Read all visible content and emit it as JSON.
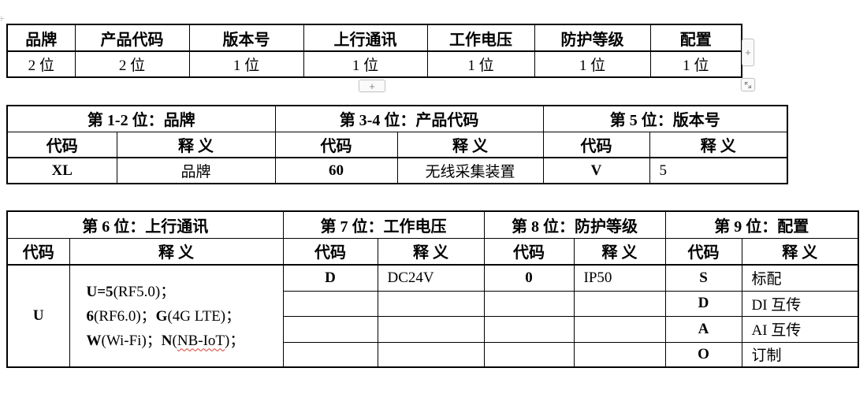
{
  "colors": {
    "border": "#000000",
    "squiggle": "#e03a2f",
    "widget_border": "#c6c6c6"
  },
  "labels": {
    "code_header": "代码",
    "meaning_header": "释 义"
  },
  "widgets": {
    "add_column": "+",
    "add_row": "+",
    "move_handle": "+",
    "resize_icon": "diagonal-resize-arrows"
  },
  "table1": {
    "headers": [
      "品牌",
      "产品代码",
      "版本号",
      "上行通讯",
      "工作电压",
      "防护等级",
      "配置"
    ],
    "values": [
      "2 位",
      "2 位",
      "1 位",
      "1 位",
      "1 位",
      "1 位",
      "1 位"
    ]
  },
  "table2": {
    "sections": [
      {
        "title": "第 1-2 位：品牌",
        "code": "XL",
        "meaning": "品牌"
      },
      {
        "title": "第 3-4 位：产品代码",
        "code": "60",
        "meaning": "无线采集装置"
      },
      {
        "title": "第 5 位：版本号",
        "code": "V",
        "meaning": "5"
      }
    ]
  },
  "table3": {
    "sections": [
      {
        "title": "第 6 位：上行通讯"
      },
      {
        "title": "第 7 位：工作电压"
      },
      {
        "title": "第 8 位：防护等级"
      },
      {
        "title": "第 9 位：配置"
      }
    ],
    "uplink": {
      "code": "U",
      "lines": [
        [
          {
            "t": "U=5",
            "b": true
          },
          {
            "t": "(RF5.0)；",
            "b": false
          }
        ],
        [
          {
            "t": "6",
            "b": true
          },
          {
            "t": "(RF6.0)；",
            "b": false
          },
          {
            "t": "G",
            "b": true
          },
          {
            "t": "(4G LTE)；",
            "b": false
          }
        ],
        [
          {
            "t": "W",
            "b": true
          },
          {
            "t": "(Wi-Fi)；",
            "b": false
          },
          {
            "t": "N",
            "b": true
          },
          {
            "t": "(",
            "b": false
          },
          {
            "t": "NB-IoT",
            "b": false,
            "sq": true
          },
          {
            "t": ")；",
            "b": false
          }
        ]
      ]
    },
    "voltage": {
      "rows": [
        {
          "code": "D",
          "meaning": "DC24V"
        },
        {
          "code": "",
          "meaning": ""
        },
        {
          "code": "",
          "meaning": ""
        },
        {
          "code": "",
          "meaning": ""
        }
      ]
    },
    "protection": {
      "rows": [
        {
          "code": "0",
          "meaning": "IP50"
        },
        {
          "code": "",
          "meaning": ""
        },
        {
          "code": "",
          "meaning": ""
        },
        {
          "code": "",
          "meaning": ""
        }
      ]
    },
    "config": {
      "rows": [
        {
          "code": "S",
          "meaning": "标配"
        },
        {
          "code": "D",
          "meaning": "DI 互传"
        },
        {
          "code": "A",
          "meaning": "AI 互传"
        },
        {
          "code": "O",
          "meaning": "订制"
        }
      ]
    }
  }
}
